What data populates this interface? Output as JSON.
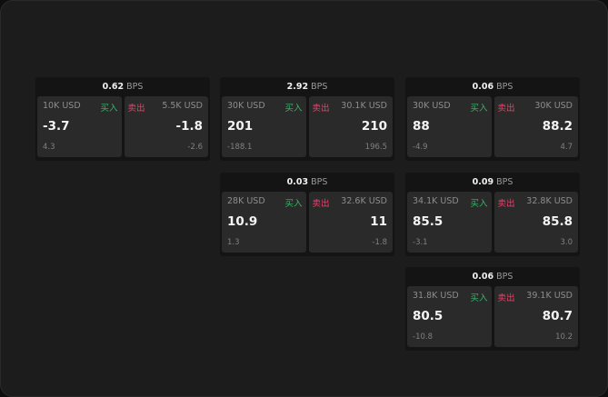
{
  "unit": "BPS",
  "buy_label": "买入",
  "sell_label": "卖出",
  "colors": {
    "buy": "#3bb36a",
    "sell": "#e0456c"
  },
  "cards": [
    {
      "spread": "0.62",
      "bid": {
        "size": "10K USD",
        "price": "-3.7",
        "change": "4.3"
      },
      "ask": {
        "size": "5.5K USD",
        "price": "-1.8",
        "change": "-2.6"
      }
    },
    {
      "spread": "2.92",
      "bid": {
        "size": "30K USD",
        "price": "201",
        "change": "-188.1"
      },
      "ask": {
        "size": "30.1K USD",
        "price": "210",
        "change": "196.5"
      }
    },
    {
      "spread": "0.06",
      "bid": {
        "size": "30K USD",
        "price": "88",
        "change": "-4.9"
      },
      "ask": {
        "size": "30K USD",
        "price": "88.2",
        "change": "4.7"
      }
    },
    {
      "spread": "0.03",
      "bid": {
        "size": "28K USD",
        "price": "10.9",
        "change": "1.3"
      },
      "ask": {
        "size": "32.6K USD",
        "price": "11",
        "change": "-1.8"
      }
    },
    {
      "spread": "0.09",
      "bid": {
        "size": "34.1K USD",
        "price": "85.5",
        "change": "-3.1"
      },
      "ask": {
        "size": "32.8K USD",
        "price": "85.8",
        "change": "3.0"
      }
    },
    {
      "spread": "0.06",
      "bid": {
        "size": "31.8K USD",
        "price": "80.5",
        "change": "-10.8"
      },
      "ask": {
        "size": "39.1K USD",
        "price": "80.7",
        "change": "10.2"
      }
    }
  ]
}
